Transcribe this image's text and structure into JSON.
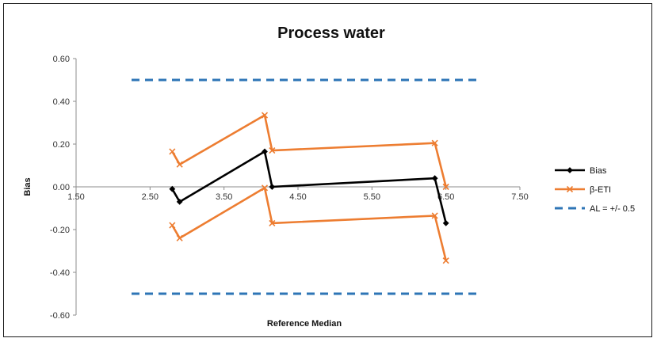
{
  "chart_data": {
    "type": "line",
    "title": "Process water",
    "xlabel": "Reference Median",
    "ylabel": "Bias",
    "xlim": [
      1.5,
      7.5
    ],
    "ylim": [
      -0.6,
      0.6
    ],
    "xticks": [
      "1.50",
      "2.50",
      "3.50",
      "4.50",
      "5.50",
      "6.50",
      "7.50"
    ],
    "yticks": [
      "0.60",
      "0.40",
      "0.20",
      "0.00",
      "-0.20",
      "-0.40",
      "-0.60"
    ],
    "grid": false,
    "legend_position": "right",
    "series": [
      {
        "name": "Bias",
        "color": "#000000",
        "marker": "diamond",
        "style": "solid",
        "x": [
          2.8,
          2.9,
          4.05,
          4.15,
          6.35,
          6.5
        ],
        "y": [
          -0.01,
          -0.07,
          0.165,
          0.0,
          0.04,
          -0.17
        ]
      },
      {
        "name": "β-ETI",
        "color": "#ED7D31",
        "marker": "x",
        "style": "solid",
        "groups": [
          {
            "x": [
              2.8,
              2.9,
              4.05,
              4.15,
              6.35,
              6.5
            ],
            "y": [
              0.165,
              0.105,
              0.335,
              0.17,
              0.205,
              0.0
            ]
          },
          {
            "x": [
              2.8,
              2.9,
              4.05,
              4.15,
              6.35,
              6.5
            ],
            "y": [
              -0.18,
              -0.24,
              -0.005,
              -0.17,
              -0.135,
              -0.345
            ]
          }
        ]
      },
      {
        "name": "AL = +/- 0.5",
        "color": "#2E75B6",
        "marker": "none",
        "style": "dashed",
        "groups": [
          {
            "x": [
              2.25,
              6.95
            ],
            "y": [
              0.5,
              0.5
            ]
          },
          {
            "x": [
              2.25,
              6.95
            ],
            "y": [
              -0.5,
              -0.5
            ]
          }
        ]
      }
    ]
  }
}
